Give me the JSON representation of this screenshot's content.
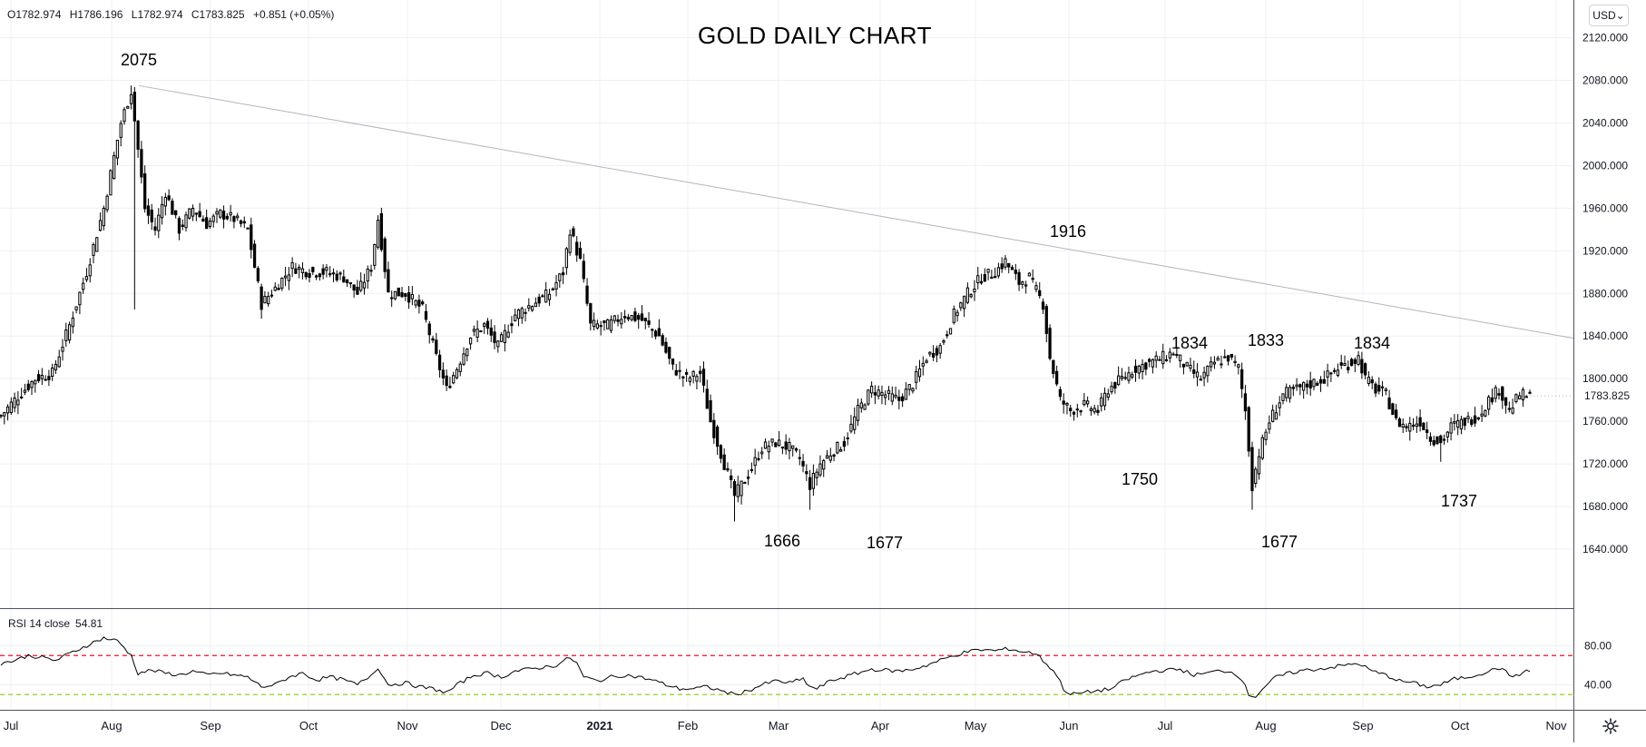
{
  "legend": {
    "open": "O1782.974",
    "high": "H1786.196",
    "low": "L1782.974",
    "close": "C1783.825",
    "change": "+0.851 (+0.05%)"
  },
  "currency_button": "USD",
  "rsi_label": "RSI 14 close",
  "rsi_value": "54.81",
  "chart_data": [
    {
      "type": "candlestick",
      "title": "GOLD DAILY CHART",
      "ylim": [
        1600,
        2140
      ],
      "y_ticks": [
        "2120.000",
        "2080.000",
        "2040.000",
        "2000.000",
        "1960.000",
        "1920.000",
        "1880.000",
        "1840.000",
        "1800.000",
        "1760.000",
        "1720.000",
        "1680.000",
        "1640.000"
      ],
      "last_price_label": "1783.825",
      "x_ticks": [
        "Jul",
        "Aug",
        "Sep",
        "Oct",
        "Nov",
        "Dec",
        "2021",
        "Feb",
        "Mar",
        "Apr",
        "May",
        "Jun",
        "Jul",
        "Aug",
        "Sep",
        "Oct",
        "Nov"
      ],
      "trend_line": {
        "from": {
          "x": "Aug",
          "y": 2075
        },
        "to": {
          "x": "Nov",
          "y": 1838
        }
      },
      "annotations": [
        {
          "text": "2075",
          "x": "Aug",
          "y": 2075
        },
        {
          "text": "1916",
          "x": "Jun",
          "y": 1916
        },
        {
          "text": "1834",
          "x": "Jul",
          "y": 1834
        },
        {
          "text": "1833",
          "x": "Aug",
          "y": 1833
        },
        {
          "text": "1834",
          "x": "Sep",
          "y": 1834
        },
        {
          "text": "1666",
          "x": "Mar",
          "y": 1666
        },
        {
          "text": "1677",
          "x": "Apr",
          "y": 1677
        },
        {
          "text": "1750",
          "x": "Jul",
          "y": 1750
        },
        {
          "text": "1677",
          "x": "Aug",
          "y": 1677
        },
        {
          "text": "1737",
          "x": "Oct",
          "y": 1737
        }
      ],
      "anchors": [
        [
          0,
          1765
        ],
        [
          4,
          1780
        ],
        [
          10,
          1800
        ],
        [
          15,
          1805
        ],
        [
          20,
          1850
        ],
        [
          25,
          1900
        ],
        [
          30,
          1960
        ],
        [
          35,
          2040
        ],
        [
          38,
          2070
        ],
        [
          42,
          1960
        ],
        [
          45,
          1940
        ],
        [
          48,
          1975
        ],
        [
          52,
          1940
        ],
        [
          56,
          1960
        ],
        [
          60,
          1945
        ],
        [
          64,
          1955
        ],
        [
          68,
          1950
        ],
        [
          72,
          1940
        ],
        [
          76,
          1870
        ],
        [
          80,
          1885
        ],
        [
          85,
          1905
        ],
        [
          90,
          1900
        ],
        [
          95,
          1900
        ],
        [
          100,
          1895
        ],
        [
          104,
          1880
        ],
        [
          108,
          1905
        ],
        [
          110,
          1950
        ],
        [
          113,
          1880
        ],
        [
          118,
          1880
        ],
        [
          123,
          1865
        ],
        [
          127,
          1820
        ],
        [
          130,
          1790
        ],
        [
          133,
          1810
        ],
        [
          137,
          1840
        ],
        [
          141,
          1850
        ],
        [
          145,
          1830
        ],
        [
          150,
          1860
        ],
        [
          155,
          1870
        ],
        [
          160,
          1880
        ],
        [
          164,
          1900
        ],
        [
          166,
          1940
        ],
        [
          169,
          1910
        ],
        [
          172,
          1850
        ],
        [
          177,
          1850
        ],
        [
          182,
          1860
        ],
        [
          187,
          1855
        ],
        [
          192,
          1840
        ],
        [
          196,
          1810
        ],
        [
          200,
          1800
        ],
        [
          204,
          1805
        ],
        [
          207,
          1760
        ],
        [
          210,
          1730
        ],
        [
          214,
          1690
        ],
        [
          218,
          1710
        ],
        [
          222,
          1735
        ],
        [
          226,
          1740
        ],
        [
          230,
          1735
        ],
        [
          233,
          1725
        ],
        [
          236,
          1700
        ],
        [
          239,
          1720
        ],
        [
          242,
          1730
        ],
        [
          246,
          1740
        ],
        [
          250,
          1770
        ],
        [
          254,
          1790
        ],
        [
          258,
          1785
        ],
        [
          262,
          1780
        ],
        [
          266,
          1795
        ],
        [
          270,
          1820
        ],
        [
          274,
          1830
        ],
        [
          278,
          1860
        ],
        [
          282,
          1880
        ],
        [
          286,
          1895
        ],
        [
          290,
          1900
        ],
        [
          293,
          1910
        ],
        [
          297,
          1890
        ],
        [
          300,
          1895
        ],
        [
          304,
          1870
        ],
        [
          306,
          1820
        ],
        [
          309,
          1780
        ],
        [
          312,
          1770
        ],
        [
          316,
          1775
        ],
        [
          320,
          1770
        ],
        [
          323,
          1790
        ],
        [
          327,
          1800
        ],
        [
          331,
          1810
        ],
        [
          335,
          1815
        ],
        [
          339,
          1820
        ],
        [
          342,
          1825
        ],
        [
          346,
          1810
        ],
        [
          350,
          1800
        ],
        [
          354,
          1815
        ],
        [
          358,
          1820
        ],
        [
          361,
          1810
        ],
        [
          363,
          1770
        ],
        [
          365,
          1700
        ],
        [
          367,
          1730
        ],
        [
          370,
          1760
        ],
        [
          374,
          1785
        ],
        [
          378,
          1790
        ],
        [
          382,
          1795
        ],
        [
          386,
          1800
        ],
        [
          390,
          1810
        ],
        [
          394,
          1815
        ],
        [
          396,
          1820
        ],
        [
          398,
          1800
        ],
        [
          401,
          1790
        ],
        [
          404,
          1785
        ],
        [
          407,
          1760
        ],
        [
          410,
          1755
        ],
        [
          414,
          1760
        ],
        [
          417,
          1745
        ],
        [
          420,
          1740
        ],
        [
          423,
          1755
        ],
        [
          427,
          1760
        ],
        [
          431,
          1765
        ],
        [
          434,
          1780
        ],
        [
          437,
          1790
        ],
        [
          440,
          1770
        ],
        [
          443,
          1785
        ],
        [
          446,
          1783
        ]
      ],
      "rsi": {
        "ylim": [
          20,
          100
        ],
        "ticks": [
          "80.00",
          "40.00"
        ],
        "overbought": 70,
        "oversold": 30,
        "anchors": [
          [
            0,
            62
          ],
          [
            4,
            65
          ],
          [
            8,
            70
          ],
          [
            12,
            68
          ],
          [
            16,
            65
          ],
          [
            20,
            72
          ],
          [
            26,
            82
          ],
          [
            30,
            88
          ],
          [
            34,
            85
          ],
          [
            36,
            78
          ],
          [
            38,
            70
          ],
          [
            40,
            52
          ],
          [
            44,
            55
          ],
          [
            48,
            52
          ],
          [
            52,
            50
          ],
          [
            56,
            54
          ],
          [
            60,
            50
          ],
          [
            64,
            52
          ],
          [
            68,
            50
          ],
          [
            72,
            48
          ],
          [
            76,
            38
          ],
          [
            80,
            40
          ],
          [
            84,
            48
          ],
          [
            88,
            52
          ],
          [
            92,
            45
          ],
          [
            96,
            48
          ],
          [
            100,
            45
          ],
          [
            104,
            40
          ],
          [
            108,
            50
          ],
          [
            110,
            58
          ],
          [
            113,
            40
          ],
          [
            118,
            42
          ],
          [
            122,
            38
          ],
          [
            126,
            36
          ],
          [
            130,
            32
          ],
          [
            134,
            42
          ],
          [
            138,
            50
          ],
          [
            142,
            52
          ],
          [
            146,
            48
          ],
          [
            150,
            54
          ],
          [
            154,
            56
          ],
          [
            158,
            58
          ],
          [
            162,
            60
          ],
          [
            166,
            68
          ],
          [
            168,
            62
          ],
          [
            170,
            48
          ],
          [
            174,
            44
          ],
          [
            178,
            48
          ],
          [
            182,
            50
          ],
          [
            186,
            48
          ],
          [
            190,
            45
          ],
          [
            194,
            40
          ],
          [
            198,
            36
          ],
          [
            202,
            36
          ],
          [
            206,
            38
          ],
          [
            210,
            34
          ],
          [
            214,
            30
          ],
          [
            218,
            34
          ],
          [
            222,
            40
          ],
          [
            226,
            44
          ],
          [
            230,
            42
          ],
          [
            234,
            46
          ],
          [
            236,
            38
          ],
          [
            238,
            36
          ],
          [
            242,
            44
          ],
          [
            246,
            48
          ],
          [
            250,
            52
          ],
          [
            254,
            56
          ],
          [
            258,
            55
          ],
          [
            262,
            54
          ],
          [
            266,
            56
          ],
          [
            270,
            60
          ],
          [
            274,
            65
          ],
          [
            278,
            70
          ],
          [
            282,
            74
          ],
          [
            286,
            76
          ],
          [
            290,
            75
          ],
          [
            294,
            77
          ],
          [
            298,
            74
          ],
          [
            302,
            72
          ],
          [
            306,
            58
          ],
          [
            308,
            50
          ],
          [
            310,
            36
          ],
          [
            312,
            30
          ],
          [
            316,
            32
          ],
          [
            320,
            34
          ],
          [
            324,
            36
          ],
          [
            328,
            45
          ],
          [
            332,
            50
          ],
          [
            336,
            54
          ],
          [
            340,
            55
          ],
          [
            344,
            56
          ],
          [
            348,
            50
          ],
          [
            352,
            52
          ],
          [
            356,
            55
          ],
          [
            360,
            52
          ],
          [
            362,
            46
          ],
          [
            364,
            30
          ],
          [
            366,
            28
          ],
          [
            368,
            36
          ],
          [
            372,
            48
          ],
          [
            376,
            52
          ],
          [
            380,
            55
          ],
          [
            384,
            56
          ],
          [
            388,
            58
          ],
          [
            392,
            60
          ],
          [
            396,
            62
          ],
          [
            400,
            54
          ],
          [
            404,
            50
          ],
          [
            408,
            44
          ],
          [
            412,
            42
          ],
          [
            416,
            38
          ],
          [
            420,
            40
          ],
          [
            424,
            46
          ],
          [
            428,
            48
          ],
          [
            432,
            52
          ],
          [
            436,
            56
          ],
          [
            438,
            58
          ],
          [
            440,
            48
          ],
          [
            444,
            52
          ],
          [
            446,
            55
          ]
        ]
      }
    }
  ]
}
